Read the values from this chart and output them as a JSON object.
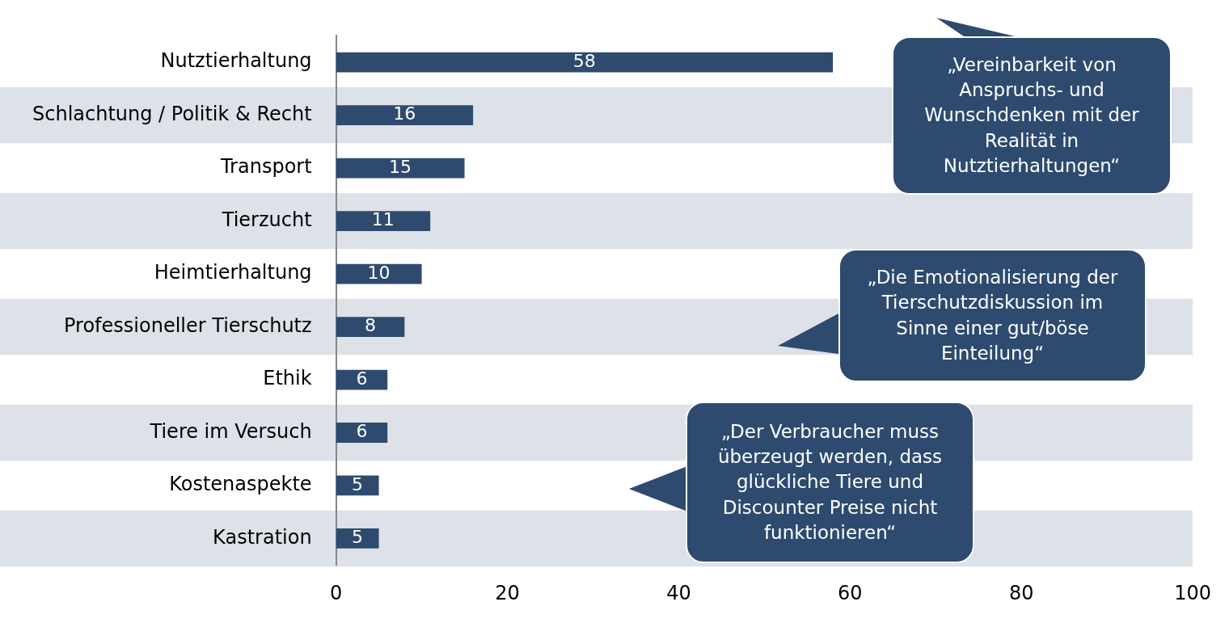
{
  "chart_data": {
    "type": "bar",
    "orientation": "horizontal",
    "categories": [
      "Nutztierhaltung",
      "Schlachtung / Politik & Recht",
      "Transport",
      "Tierzucht",
      "Heimtierhaltung",
      "Professioneller Tierschutz",
      "Ethik",
      "Tiere im Versuch",
      "Kostenaspekte",
      "Kastration"
    ],
    "values": [
      58,
      16,
      15,
      11,
      10,
      8,
      6,
      6,
      5,
      5
    ],
    "color": "#2e4a6f",
    "xlim": [
      0,
      100
    ],
    "xticks": [
      0,
      20,
      40,
      60,
      80,
      100
    ],
    "bands": [
      {
        "axis": "y",
        "from": "Schlachtung / Politik & Recht",
        "to": "Schlachtung / Politik & Recht",
        "color": "#dde1e8"
      },
      {
        "axis": "y",
        "from": "Tierzucht",
        "to": "Tierzucht",
        "color": "#dde1e8"
      },
      {
        "axis": "y",
        "from": "Professioneller Tierschutz",
        "to": "Professioneller Tierschutz",
        "color": "#dde1e8"
      },
      {
        "axis": "y",
        "from": "Tiere im Versuch",
        "to": "Tiere im Versuch",
        "color": "#dde1e8"
      },
      {
        "axis": "y",
        "from": "Kastration",
        "to": "Kastration",
        "color": "#dde1e8"
      }
    ],
    "grid": false,
    "legend": false,
    "data_labels": true,
    "annotations": [
      "„Vereinbarkeit von Anspruchs- und Wunschdenken mit der Realität in Nutztierhaltungen“",
      "„Die Emotionalisierung der Tierschutzdiskussion im Sinne einer gut/böse Einteilung“",
      "„Der Verbraucher muss überzeugt werden, dass glückliche Tiere und Discounter Preise nicht funktionieren“"
    ]
  }
}
